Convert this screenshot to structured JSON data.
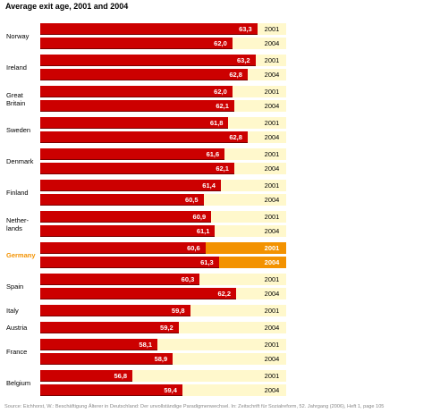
{
  "chart_data": {
    "type": "bar",
    "orientation": "horizontal",
    "title": "Average exit age, 2001 and  2004",
    "categories": [
      "Norway",
      "Ireland",
      "Great\nBritain",
      "Sweden",
      "Denmark",
      "Finland",
      "Nether-\nlands",
      "Germany",
      "Spain",
      "Italy",
      "Austria",
      "France",
      "Belgium"
    ],
    "series": [
      {
        "name": "2001",
        "color": "#cc0000",
        "values": [
          63.3,
          63.2,
          62.0,
          61.8,
          61.6,
          61.4,
          60.9,
          60.6,
          60.3,
          59.8,
          null,
          58.1,
          56.8
        ],
        "value_labels": [
          "63,3",
          "63,2",
          "62,0",
          "61,8",
          "61,6",
          "61,4",
          "60,9",
          "60,6",
          "60,3",
          "59,8",
          null,
          "58,1",
          "56,8"
        ]
      },
      {
        "name": "2004",
        "color": "#cc0000",
        "values": [
          62.0,
          62.8,
          62.1,
          62.8,
          62.1,
          60.5,
          61.1,
          61.3,
          62.2,
          null,
          59.2,
          58.9,
          59.4
        ],
        "value_labels": [
          "62,0",
          "62,8",
          "62,1",
          "62,8",
          "62,1",
          "60,5",
          "61,1",
          "61,3",
          "62,2",
          null,
          "59,2",
          "58,9",
          "59,4"
        ]
      }
    ],
    "xlim": [
      52,
      63.5
    ],
    "band_color": "#fff8cc",
    "highlight": 7,
    "highlight_color": "#f39200",
    "source": "Source: Eichhorst, W.: Beschäftigung Älterer in Deutschland: Der unvollständige Paradigmenwechsel. In: Zeitschrift für Sozialreform, 52. Jahrgang (2006), Heft 1, page 105"
  }
}
